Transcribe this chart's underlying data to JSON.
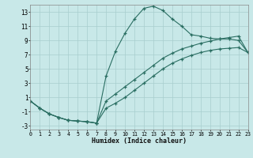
{
  "xlabel": "Humidex (Indice chaleur)",
  "bg_color": "#c8e8e8",
  "grid_color": "#a8cece",
  "line_color": "#2a6e62",
  "xlim": [
    0,
    23
  ],
  "ylim": [
    -3.5,
    14.0
  ],
  "xtick_vals": [
    0,
    1,
    2,
    3,
    4,
    5,
    6,
    7,
    8,
    9,
    10,
    11,
    12,
    13,
    14,
    15,
    16,
    17,
    18,
    19,
    20,
    21,
    22,
    23
  ],
  "ytick_vals": [
    -3,
    -1,
    1,
    3,
    5,
    7,
    9,
    11,
    13
  ],
  "curve1_x": [
    0,
    1,
    2,
    3,
    4,
    5,
    6,
    7,
    8,
    9,
    10,
    11,
    12,
    13,
    14,
    15,
    16,
    17,
    18,
    19,
    20,
    21,
    22,
    23
  ],
  "curve1_y": [
    0.5,
    -0.5,
    -1.3,
    -1.8,
    -2.2,
    -2.3,
    -2.4,
    -2.6,
    4.0,
    7.5,
    10.0,
    12.0,
    13.5,
    13.8,
    13.2,
    12.0,
    11.0,
    9.8,
    9.6,
    9.3,
    9.2,
    9.2,
    9.0,
    7.3
  ],
  "curve2_x": [
    0,
    1,
    2,
    3,
    4,
    5,
    6,
    7,
    8,
    9,
    10,
    11,
    12,
    13,
    14,
    15,
    16,
    17,
    18,
    19,
    20,
    21,
    22,
    23
  ],
  "curve2_y": [
    0.5,
    -0.5,
    -1.3,
    -1.8,
    -2.2,
    -2.3,
    -2.4,
    -2.6,
    0.5,
    1.5,
    2.5,
    3.5,
    4.5,
    5.5,
    6.5,
    7.2,
    7.8,
    8.2,
    8.6,
    8.9,
    9.2,
    9.4,
    9.6,
    7.3
  ],
  "curve3_x": [
    0,
    1,
    2,
    3,
    4,
    5,
    6,
    7,
    8,
    9,
    10,
    11,
    12,
    13,
    14,
    15,
    16,
    17,
    18,
    19,
    20,
    21,
    22,
    23
  ],
  "curve3_y": [
    0.5,
    -0.5,
    -1.3,
    -1.8,
    -2.2,
    -2.3,
    -2.4,
    -2.6,
    -0.5,
    0.2,
    1.0,
    2.0,
    3.0,
    4.0,
    5.0,
    5.8,
    6.4,
    6.9,
    7.3,
    7.6,
    7.8,
    7.9,
    8.0,
    7.3
  ]
}
